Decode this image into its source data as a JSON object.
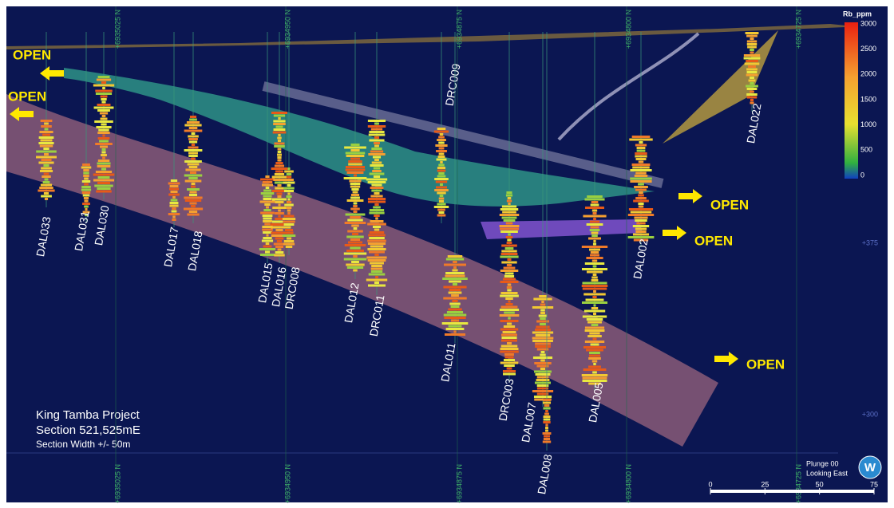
{
  "title_block": {
    "project": "King Tamba Project",
    "section": "Section 521,525mE",
    "width": "Section Width +/- 50m"
  },
  "colorbar": {
    "title": "Rb_ppm",
    "ticks": [
      3000,
      2500,
      2000,
      1500,
      1000,
      500,
      0
    ]
  },
  "northings": [
    "+6935025 N",
    "+6934950 N",
    "+6934875 N",
    "+6934800 N",
    "+6934725 N"
  ],
  "elevations": [
    "+375",
    "+300"
  ],
  "drill_holes": [
    "DAL033",
    "DAL031",
    "DAL030",
    "DAL017",
    "DAL018",
    "DAL015",
    "DAL016",
    "DRC008",
    "DAL012",
    "DRC011",
    "DRC009",
    "DAL011",
    "DRC003",
    "DAL007",
    "DAL008",
    "DAL005",
    "DAL002",
    "DAL022"
  ],
  "open_labels": [
    "OPEN",
    "OPEN",
    "OPEN",
    "OPEN",
    "OPEN"
  ],
  "view": {
    "plunge": "Plunge 00",
    "direction": "Looking East",
    "logo": "W"
  },
  "scale_bar": {
    "ticks": [
      0,
      25,
      50,
      75
    ]
  }
}
